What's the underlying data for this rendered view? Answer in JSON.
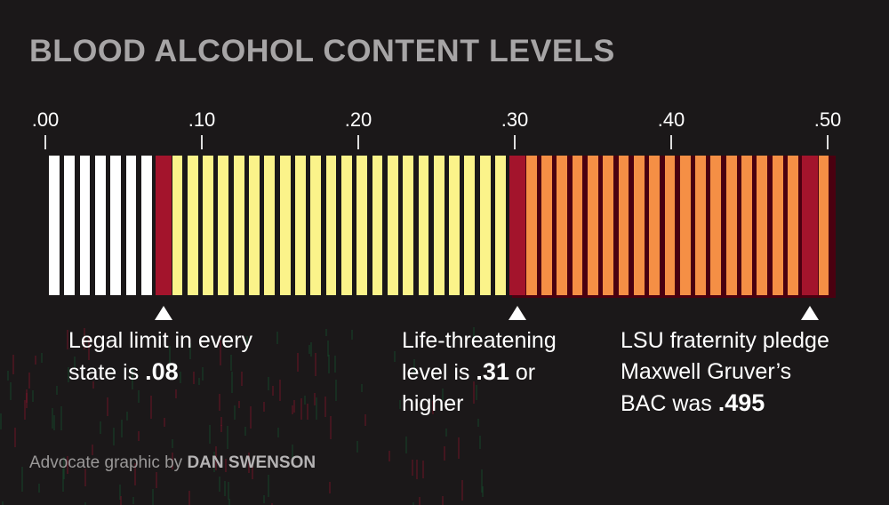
{
  "title": "BLOOD ALCOHOL CONTENT LEVELS",
  "chart_data": {
    "type": "bar",
    "title": "BLOOD ALCOHOL CONTENT LEVELS",
    "xlim": [
      0,
      0.5
    ],
    "tick_labels": [
      ".00",
      ".10",
      ".20",
      ".30",
      ".40",
      ".50"
    ],
    "colors": {
      "safe": "#ffffff",
      "impaired": "#fbf38a",
      "dangerous": "#f58f45",
      "marker": "#a3142c"
    },
    "bars": [
      {
        "bac": 0.01,
        "level": "safe"
      },
      {
        "bac": 0.02,
        "level": "safe"
      },
      {
        "bac": 0.03,
        "level": "safe"
      },
      {
        "bac": 0.04,
        "level": "safe"
      },
      {
        "bac": 0.05,
        "level": "safe"
      },
      {
        "bac": 0.06,
        "level": "safe"
      },
      {
        "bac": 0.07,
        "level": "safe"
      },
      {
        "bac": 0.08,
        "level": "marker"
      },
      {
        "bac": 0.09,
        "level": "impaired"
      },
      {
        "bac": 0.1,
        "level": "impaired"
      },
      {
        "bac": 0.11,
        "level": "impaired"
      },
      {
        "bac": 0.12,
        "level": "impaired"
      },
      {
        "bac": 0.13,
        "level": "impaired"
      },
      {
        "bac": 0.14,
        "level": "impaired"
      },
      {
        "bac": 0.15,
        "level": "impaired"
      },
      {
        "bac": 0.16,
        "level": "impaired"
      },
      {
        "bac": 0.17,
        "level": "impaired"
      },
      {
        "bac": 0.18,
        "level": "impaired"
      },
      {
        "bac": 0.19,
        "level": "impaired"
      },
      {
        "bac": 0.2,
        "level": "impaired"
      },
      {
        "bac": 0.21,
        "level": "impaired"
      },
      {
        "bac": 0.22,
        "level": "impaired"
      },
      {
        "bac": 0.23,
        "level": "impaired"
      },
      {
        "bac": 0.24,
        "level": "impaired"
      },
      {
        "bac": 0.25,
        "level": "impaired"
      },
      {
        "bac": 0.26,
        "level": "impaired"
      },
      {
        "bac": 0.27,
        "level": "impaired"
      },
      {
        "bac": 0.28,
        "level": "impaired"
      },
      {
        "bac": 0.29,
        "level": "impaired"
      },
      {
        "bac": 0.3,
        "level": "impaired"
      },
      {
        "bac": 0.31,
        "level": "marker"
      },
      {
        "bac": 0.32,
        "level": "dangerous"
      },
      {
        "bac": 0.33,
        "level": "dangerous"
      },
      {
        "bac": 0.34,
        "level": "dangerous"
      },
      {
        "bac": 0.35,
        "level": "dangerous"
      },
      {
        "bac": 0.36,
        "level": "dangerous"
      },
      {
        "bac": 0.37,
        "level": "dangerous"
      },
      {
        "bac": 0.38,
        "level": "dangerous"
      },
      {
        "bac": 0.39,
        "level": "dangerous"
      },
      {
        "bac": 0.4,
        "level": "dangerous"
      },
      {
        "bac": 0.41,
        "level": "dangerous"
      },
      {
        "bac": 0.42,
        "level": "dangerous"
      },
      {
        "bac": 0.43,
        "level": "dangerous"
      },
      {
        "bac": 0.44,
        "level": "dangerous"
      },
      {
        "bac": 0.45,
        "level": "dangerous"
      },
      {
        "bac": 0.46,
        "level": "dangerous"
      },
      {
        "bac": 0.47,
        "level": "dangerous"
      },
      {
        "bac": 0.48,
        "level": "dangerous"
      },
      {
        "bac": 0.49,
        "level": "dangerous"
      },
      {
        "bac": 0.495,
        "level": "marker"
      },
      {
        "bac": 0.5,
        "level": "dangerous"
      }
    ],
    "annotations": [
      {
        "bac": 0.08,
        "text": "Legal limit in every state is",
        "value": ".08"
      },
      {
        "bac": 0.31,
        "text": "Life-threatening level is",
        "value": ".31",
        "suffix": "or higher"
      },
      {
        "bac": 0.495,
        "text": "LSU fraternity pledge Maxwell Gruver’s BAC was",
        "value": ".495"
      }
    ]
  },
  "notes": {
    "legal": {
      "line1": "Legal limit in every",
      "line2": "state is",
      "value": ".08"
    },
    "life": {
      "line1": "Life-threatening",
      "line2a": "level is",
      "value": ".31",
      "line2b": "or",
      "line3": "higher"
    },
    "lsu": {
      "line1": "LSU fraternity pledge",
      "line2": "Maxwell Gruver’s",
      "line3": "BAC was",
      "value": ".495"
    }
  },
  "credit": {
    "prefix": "Advocate graphic by",
    "author": "DAN SWENSON"
  }
}
